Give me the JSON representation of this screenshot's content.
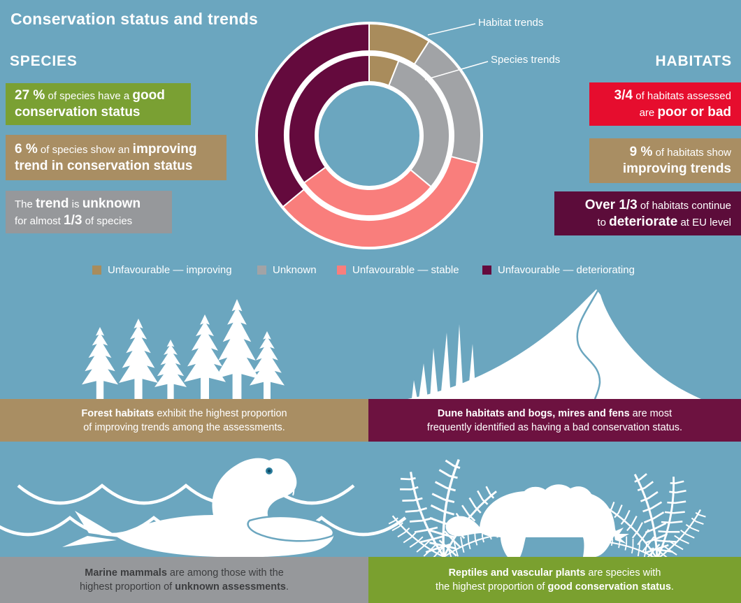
{
  "title": "Conservation status and trends",
  "colors": {
    "background": "#6ba6bf",
    "improving": "#a98c5c",
    "unknown": "#a1a3a6",
    "stable": "#f97e7c",
    "deteriorating": "#640a3d",
    "green_box": "#7aa033",
    "red_box": "#e60d2e",
    "tan_box": "#a98e63",
    "gray_box": "#96989b",
    "maroon_box": "#5c0c3a",
    "tan_band": "#a98e63",
    "maroon_band": "#6d1240",
    "gray_band": "#96989b",
    "green_band": "#7aa02f",
    "dark_text": "#3c3d3f"
  },
  "species": {
    "heading": "SPECIES",
    "good_box": {
      "line1": [
        {
          "t": "27 %",
          "b": true
        },
        {
          "t": " of species have a ",
          "b": false
        },
        {
          "t": "good",
          "b": true
        }
      ],
      "line2": [
        {
          "t": "conservation status",
          "b": true
        }
      ]
    },
    "improving_box": {
      "line1": [
        {
          "t": "6 %",
          "b": true
        },
        {
          "t": " of species show an ",
          "b": false
        },
        {
          "t": "improving",
          "b": true
        }
      ],
      "line2": [
        {
          "t": "trend in conservation status",
          "b": true
        }
      ]
    },
    "unknown_box": {
      "line1": [
        {
          "t": "The ",
          "b": false
        },
        {
          "t": "trend",
          "b": true
        },
        {
          "t": " is ",
          "b": false
        },
        {
          "t": "unknown",
          "b": true
        }
      ],
      "line2": [
        {
          "t": "for almost ",
          "b": false
        },
        {
          "t": "1/3",
          "b": true
        },
        {
          "t": " of species",
          "b": false
        }
      ]
    }
  },
  "habitats": {
    "heading": "HABITATS",
    "poor_box": {
      "line1": [
        {
          "t": "3/4",
          "b": true
        },
        {
          "t": " of habitats assessed",
          "b": false
        }
      ],
      "line2": [
        {
          "t": "are ",
          "b": false
        },
        {
          "t": "poor or bad",
          "b": true
        }
      ]
    },
    "improving_box": {
      "line1": [
        {
          "t": "9 %",
          "b": true
        },
        {
          "t": " of habitats show",
          "b": false
        }
      ],
      "line2": [
        {
          "t": "improving trends",
          "b": true
        }
      ]
    },
    "deteriorate_box": {
      "line1": [
        {
          "t": "Over 1/3",
          "b": true
        },
        {
          "t": " of habitats continue",
          "b": false
        }
      ],
      "line2": [
        {
          "t": "to ",
          "b": false
        },
        {
          "t": "deteriorate",
          "b": true
        },
        {
          "t": " at EU level",
          "b": false
        }
      ]
    }
  },
  "chart_data": {
    "type": "donut",
    "title": "Conservation status and trends",
    "direction": "clockwise",
    "start_angle_deg": 0,
    "statuses": [
      "improving",
      "unknown",
      "stable",
      "deteriorating"
    ],
    "legend": [
      "Unfavourable — improving",
      "Unknown",
      "Unfavourable — stable",
      "Unfavourable — deteriorating"
    ],
    "legend_position": "below chart, horizontal row",
    "rings": [
      {
        "id": "habitat-trends",
        "name": "Habitat trends",
        "position": "outer",
        "values": [
          9,
          20,
          35,
          36
        ],
        "unit": "%"
      },
      {
        "id": "species-trends",
        "name": "Species trends",
        "position": "inner",
        "values": [
          6,
          30,
          29,
          35
        ],
        "unit": "%"
      }
    ]
  },
  "captions": {
    "forest": {
      "line1": [
        {
          "t": "Forest habitats",
          "b": true
        },
        {
          "t": " exhibit the highest proportion",
          "b": false
        }
      ],
      "line2": [
        {
          "t": "of improving trends among the assessments.",
          "b": false
        }
      ]
    },
    "dune": {
      "line1": [
        {
          "t": "Dune habitats and bogs, mires and fens",
          "b": true
        },
        {
          "t": " are most",
          "b": false
        }
      ],
      "line2": [
        {
          "t": "frequently identified as having a bad conservation status.",
          "b": false
        }
      ]
    },
    "marine": {
      "line1": [
        {
          "t": "Marine mammals",
          "b": true
        },
        {
          "t": " are among those with the",
          "b": false
        }
      ],
      "line2": [
        {
          "t": "highest proportion of ",
          "b": false
        },
        {
          "t": "unknown assessments",
          "b": true
        },
        {
          "t": ".",
          "b": false
        }
      ]
    },
    "reptiles": {
      "line1": [
        {
          "t": "Reptiles and vascular plants",
          "b": true
        },
        {
          "t": " are species with",
          "b": false
        }
      ],
      "line2": [
        {
          "t": "the highest proportion of ",
          "b": false
        },
        {
          "t": "good conservation status",
          "b": true
        },
        {
          "t": ".",
          "b": false
        }
      ]
    }
  }
}
